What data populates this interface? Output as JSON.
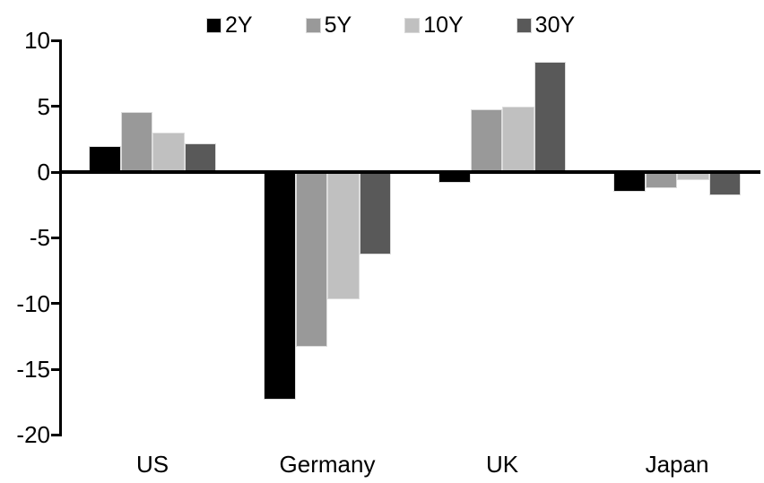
{
  "chart_data": {
    "type": "bar",
    "title": "",
    "categories": [
      "US",
      "Germany",
      "UK",
      "Japan"
    ],
    "series": [
      {
        "name": "2Y",
        "color": "#000000",
        "values": [
          2.0,
          -17.3,
          -0.8,
          -1.5
        ]
      },
      {
        "name": "5Y",
        "color": "#999999",
        "values": [
          4.6,
          -13.3,
          4.8,
          -1.2
        ]
      },
      {
        "name": "10Y",
        "color": "#c0c0c0",
        "values": [
          3.0,
          -9.7,
          5.0,
          -0.6
        ]
      },
      {
        "name": "30Y",
        "color": "#595959",
        "values": [
          2.2,
          -6.3,
          8.4,
          -1.8
        ]
      }
    ],
    "ylim": [
      -20,
      10
    ],
    "ytick_step": 5,
    "yticks": [
      "10",
      "5",
      "0",
      "-5",
      "-10",
      "-15",
      "-20"
    ],
    "legend_position": "top",
    "grid": false,
    "zero_line": true,
    "xlabel": "",
    "ylabel": ""
  }
}
